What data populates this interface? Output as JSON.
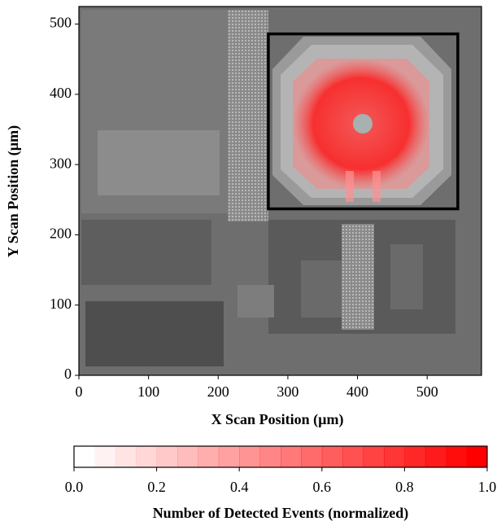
{
  "chart_data": {
    "type": "image-heatmap",
    "xlabel": "X Scan Position (µm)",
    "ylabel": "Y Scan Position (µm)",
    "xlim": [
      0,
      578
    ],
    "ylim": [
      0,
      525
    ],
    "xticks": [
      0,
      100,
      200,
      300,
      400,
      500
    ],
    "yticks": [
      0,
      100,
      200,
      300,
      400,
      500
    ],
    "roi": {
      "x": [
        272,
        544
      ],
      "y": [
        237,
        486
      ]
    },
    "colorbar": {
      "label": "Number of Detected Events (normalized)",
      "lim": [
        0,
        1
      ],
      "levels": 20,
      "color": "#ff0000",
      "ticks": [
        {
          "value": 0,
          "label": "0.0"
        },
        {
          "value": 0.2,
          "label": "0.2"
        },
        {
          "value": 0.4,
          "label": "0.4"
        },
        {
          "value": 0.6,
          "label": "0.6"
        },
        {
          "value": 0.8,
          "label": "0.8"
        },
        {
          "value": 1,
          "label": "1.0"
        }
      ]
    }
  }
}
